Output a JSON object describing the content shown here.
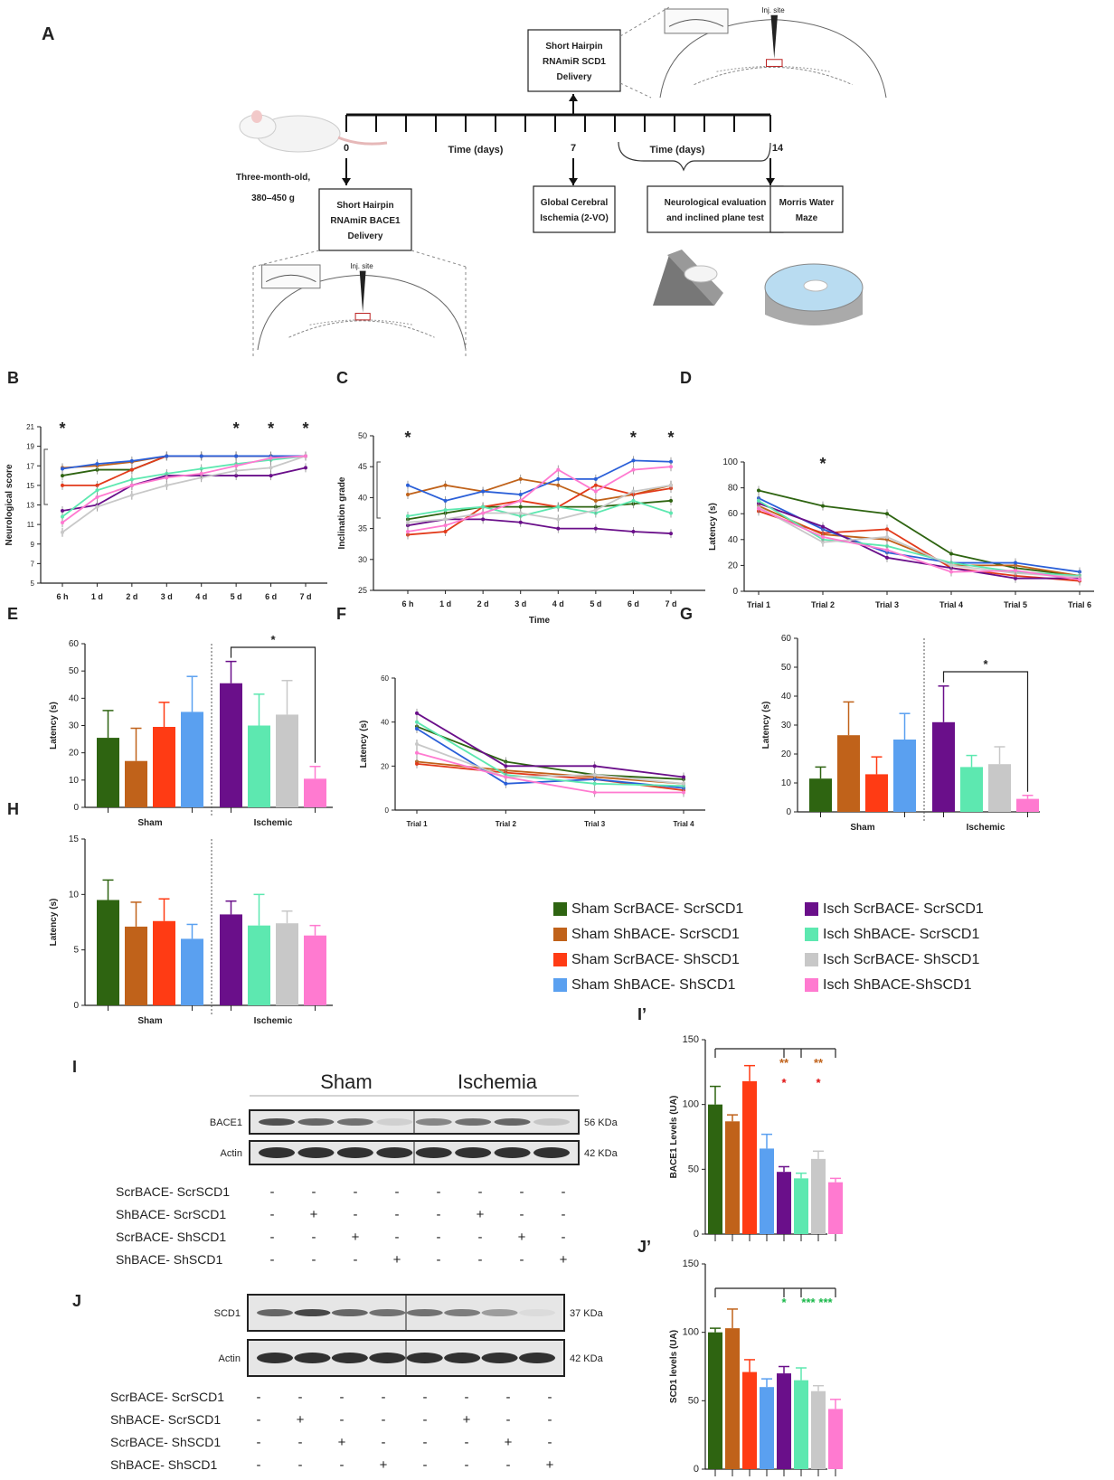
{
  "colors": {
    "g1": "#2e6411",
    "g2": "#c0621a",
    "g3": "#ff3b14",
    "g4": "#5aa0f0",
    "g5": "#6a0f8a",
    "g6": "#5de8b0",
    "g7": "#c8c8c8",
    "g8": "#ff7ad0",
    "line_blue": "#2a5fd8",
    "line_red": "#e23a1a",
    "sig_orange": "#c0621a",
    "sig_red": "#e01010",
    "sig_green": "#1ab84a"
  },
  "panel_A": {
    "label": "A",
    "rat_text": [
      "Three-month-old,",
      "380–450 g"
    ],
    "day0": "0",
    "day7": "7",
    "day14": "14",
    "time1": "Time (days)",
    "time2": "Time (days)",
    "box_scd1": [
      "Short Hairpin",
      "RNAmiR SCD1",
      "Delivery"
    ],
    "box_bace1": [
      "Short Hairpin",
      "RNAmiR BACE1",
      "Delivery"
    ],
    "box_ischemia": [
      "Global Cerebral",
      "Ischemia (2-VO)"
    ],
    "box_neuro": [
      "Neurological evaluation",
      "and inclined plane test"
    ],
    "box_morris": [
      "Morris Water",
      "Maze"
    ],
    "inj_site": "Inj. site"
  },
  "legend": {
    "items": [
      "Sham ScrBACE- ScrSCD1",
      "Sham ShBACE- ScrSCD1",
      "Sham ScrBACE- ShSCD1",
      "Sham ShBACE- ShSCD1",
      "Isch ScrBACE- ScrSCD1",
      "Isch ShBACE- ScrSCD1",
      "Isch ScrBACE- ShSCD1",
      "Isch ShBACE-ShSCD1"
    ],
    "icon": "legend-swatch"
  },
  "chart_data": [
    {
      "id": "B",
      "type": "line",
      "ylabel": "Neurological score",
      "xlabel": "",
      "categories": [
        "6 h",
        "1 d",
        "2 d",
        "3 d",
        "4 d",
        "5 d",
        "6 d",
        "7 d"
      ],
      "yticks": [
        5,
        7,
        9,
        11,
        13,
        15,
        17,
        19,
        21
      ],
      "ylim": [
        5,
        21
      ],
      "stars_at": [
        "6 h",
        "5 d",
        "6 d",
        "7 d"
      ],
      "series": [
        {
          "name": "Sham ScrBACE- ScrSCD1",
          "values": [
            16.0,
            16.6,
            16.6,
            18.0,
            18.0,
            18.0,
            18.0,
            18.0
          ]
        },
        {
          "name": "Sham ShBACE- ScrSCD1",
          "values": [
            16.8,
            17.0,
            17.4,
            18.0,
            18.0,
            18.0,
            18.0,
            18.0
          ]
        },
        {
          "name": "Sham ScrBACE- ShSCD1",
          "values": [
            15.0,
            15.0,
            16.6,
            18.0,
            18.0,
            18.0,
            18.0,
            18.0
          ]
        },
        {
          "name": "Sham ShBACE- ShSCD1",
          "values": [
            16.7,
            17.2,
            17.5,
            18.0,
            18.0,
            18.0,
            18.0,
            18.0
          ]
        },
        {
          "name": "Isch ScrBACE- ScrSCD1",
          "values": [
            12.4,
            13.0,
            15.0,
            16.0,
            16.0,
            16.0,
            16.0,
            16.8
          ]
        },
        {
          "name": "Isch ShBACE- ScrSCD1",
          "values": [
            11.8,
            14.5,
            15.6,
            16.2,
            16.7,
            17.2,
            17.6,
            18.0
          ]
        },
        {
          "name": "Isch ScrBACE- ShSCD1",
          "values": [
            10.2,
            12.8,
            14.0,
            15.0,
            15.8,
            16.5,
            16.8,
            18.0
          ]
        },
        {
          "name": "Isch ShBACE-ShSCD1",
          "values": [
            11.2,
            13.8,
            15.0,
            15.8,
            16.2,
            17.0,
            17.8,
            18.0
          ]
        }
      ]
    },
    {
      "id": "C",
      "type": "line",
      "ylabel": "Inclination grade",
      "xlabel": "Time",
      "categories": [
        "6 h",
        "1 d",
        "2 d",
        "3 d",
        "4 d",
        "5 d",
        "6 d",
        "7 d"
      ],
      "yticks": [
        25,
        30,
        35,
        40,
        45,
        50
      ],
      "ylim": [
        25,
        50
      ],
      "stars_at": [
        "6 h",
        "6 d",
        "7 d"
      ],
      "series": [
        {
          "name": "Sham ScrBACE- ScrSCD1",
          "values": [
            36.5,
            37.5,
            38.5,
            38.5,
            38.5,
            38.5,
            39.0,
            39.5
          ]
        },
        {
          "name": "Sham ShBACE- ScrSCD1",
          "values": [
            40.5,
            42.0,
            41.0,
            43.0,
            42.0,
            39.5,
            40.5,
            42.0
          ]
        },
        {
          "name": "Sham ScrBACE- ShSCD1",
          "values": [
            34.0,
            34.5,
            38.5,
            39.5,
            38.5,
            42.0,
            40.5,
            41.5
          ]
        },
        {
          "name": "Sham ShBACE- ShSCD1",
          "values": [
            42.0,
            39.5,
            41.0,
            40.5,
            43.0,
            43.0,
            46.0,
            45.8
          ]
        },
        {
          "name": "Isch ScrBACE- ScrSCD1",
          "values": [
            35.5,
            36.5,
            36.5,
            36.0,
            35.0,
            35.0,
            34.5,
            34.2
          ]
        },
        {
          "name": "Isch ShBACE- ScrSCD1",
          "values": [
            37.0,
            38.0,
            38.5,
            37.0,
            38.5,
            37.5,
            39.5,
            37.5
          ]
        },
        {
          "name": "Isch ScrBACE- ShSCD1",
          "values": [
            36.0,
            36.5,
            37.5,
            37.5,
            36.5,
            38.0,
            41.0,
            42.0
          ]
        },
        {
          "name": "Isch ShBACE-ShSCD1",
          "values": [
            34.5,
            35.5,
            37.5,
            39.5,
            44.5,
            41.0,
            44.5,
            45.0
          ]
        }
      ]
    },
    {
      "id": "D",
      "type": "line",
      "ylabel": "Latency (s)",
      "xlabel": "",
      "categories": [
        "Trial 1",
        "Trial 2",
        "Trial 3",
        "Trial 4",
        "Trial 5",
        "Trial 6"
      ],
      "yticks": [
        0,
        20,
        40,
        60,
        80,
        100
      ],
      "ylim": [
        0,
        100
      ],
      "stars_at": [
        "Trial 2"
      ],
      "series": [
        {
          "name": "Sham ScrBACE- ScrSCD1",
          "values": [
            78,
            66,
            60,
            29,
            18,
            12
          ]
        },
        {
          "name": "Sham ShBACE- ScrSCD1",
          "values": [
            66,
            44,
            40,
            20,
            20,
            12
          ]
        },
        {
          "name": "Sham ScrBACE- ShSCD1",
          "values": [
            62,
            45,
            48,
            18,
            12,
            8
          ]
        },
        {
          "name": "Sham ShBACE- ShSCD1",
          "values": [
            72,
            48,
            30,
            22,
            22,
            15
          ]
        },
        {
          "name": "Isch ScrBACE- ScrSCD1",
          "values": [
            68,
            50,
            26,
            18,
            10,
            10
          ]
        },
        {
          "name": "Isch ShBACE- ScrSCD1",
          "values": [
            70,
            40,
            35,
            22,
            15,
            12
          ]
        },
        {
          "name": "Isch ScrBACE- ShSCD1",
          "values": [
            65,
            38,
            42,
            20,
            14,
            11
          ]
        },
        {
          "name": "Isch ShBACE-ShSCD1",
          "values": [
            64,
            42,
            32,
            15,
            16,
            9
          ]
        }
      ]
    },
    {
      "id": "E",
      "type": "bar",
      "ylabel": "Latency (s)",
      "yticks": [
        0,
        10,
        20,
        30,
        40,
        50,
        60
      ],
      "ylim": [
        0,
        60
      ],
      "groups": [
        "Sham",
        "Ischemic"
      ],
      "star": "*",
      "values": [
        25.5,
        17,
        29.5,
        35,
        45.5,
        30,
        34,
        10.5
      ],
      "errors": [
        10,
        12,
        9,
        13,
        8,
        11.5,
        12.5,
        4.5
      ]
    },
    {
      "id": "F",
      "type": "line",
      "ylabel": "Latency (s)",
      "xlabel": "",
      "categories": [
        "Trial 1",
        "Trial 2",
        "Trial 3",
        "Trial 4"
      ],
      "yticks": [
        0,
        20,
        40,
        60
      ],
      "ylim": [
        0,
        60
      ],
      "series": [
        {
          "name": "Sham ScrBACE- ScrSCD1",
          "values": [
            38,
            22,
            16,
            14
          ]
        },
        {
          "name": "Sham ShBACE- ScrSCD1",
          "values": [
            22,
            18,
            15,
            12
          ]
        },
        {
          "name": "Sham ScrBACE- ShSCD1",
          "values": [
            21,
            17,
            14,
            9
          ]
        },
        {
          "name": "Sham ShBACE- ShSCD1",
          "values": [
            37,
            12,
            14,
            10
          ]
        },
        {
          "name": "Isch ScrBACE- ScrSCD1",
          "values": [
            44,
            20,
            20,
            15
          ]
        },
        {
          "name": "Isch ShBACE- ScrSCD1",
          "values": [
            40,
            16,
            12,
            11
          ]
        },
        {
          "name": "Isch ScrBACE- ShSCD1",
          "values": [
            30,
            15,
            16,
            12
          ]
        },
        {
          "name": "Isch ShBACE-ShSCD1",
          "values": [
            26,
            15,
            8,
            8
          ]
        }
      ]
    },
    {
      "id": "G",
      "type": "bar",
      "ylabel": "Latency (s)",
      "yticks": [
        0,
        10,
        20,
        30,
        40,
        50,
        60
      ],
      "ylim": [
        0,
        60
      ],
      "groups": [
        "Sham",
        "Ischemic"
      ],
      "star": "*",
      "values": [
        11.5,
        26.5,
        13,
        25,
        31,
        15.5,
        16.5,
        4.5
      ],
      "errors": [
        4,
        11.5,
        6,
        9,
        12.5,
        4,
        6,
        1.2
      ]
    },
    {
      "id": "H",
      "type": "bar",
      "ylabel": "Latency (s)",
      "yticks": [
        0,
        5,
        10,
        15
      ],
      "ylim": [
        0,
        15
      ],
      "groups": [
        "Sham",
        "Ischemic"
      ],
      "values": [
        9.5,
        7.1,
        7.6,
        6.0,
        8.2,
        7.2,
        7.4,
        6.3
      ],
      "errors": [
        1.8,
        2.2,
        2.0,
        1.3,
        1.2,
        2.8,
        1.1,
        0.9
      ]
    },
    {
      "id": "I'",
      "type": "bar",
      "ylabel": "BACE1 Levels (UA)",
      "yticks": [
        0,
        50,
        100,
        150
      ],
      "ylim": [
        0,
        150
      ],
      "values": [
        100,
        87,
        118,
        66,
        48,
        43,
        58,
        40
      ],
      "errors": [
        14,
        5,
        12,
        11,
        4,
        4,
        6,
        3
      ],
      "sig": [
        {
          "text": "**",
          "bar": 5,
          "row": 1,
          "color": "sig_orange"
        },
        {
          "text": "*",
          "bar": 5,
          "row": 2,
          "color": "sig_red"
        },
        {
          "text": "**",
          "bar": 7,
          "row": 1,
          "color": "sig_orange"
        },
        {
          "text": "*",
          "bar": 7,
          "row": 2,
          "color": "sig_red"
        }
      ]
    },
    {
      "id": "J'",
      "type": "bar",
      "ylabel": "SCD1 levels  (UA)",
      "yticks": [
        0,
        50,
        100,
        150
      ],
      "ylim": [
        0,
        150
      ],
      "values": [
        100,
        103,
        71,
        60,
        70,
        65,
        57,
        44
      ],
      "errors": [
        3,
        14,
        9,
        6,
        5,
        9,
        4,
        7
      ],
      "sig": [
        {
          "text": "*",
          "bar": 5,
          "row": 1,
          "color": "sig_green"
        },
        {
          "text": "***",
          "bar": 6,
          "row": 1,
          "color": "sig_green"
        },
        {
          "text": "***",
          "bar": 7,
          "row": 1,
          "color": "sig_green"
        }
      ]
    }
  ],
  "panel_labels": [
    "B",
    "C",
    "D",
    "E",
    "F",
    "G",
    "H"
  ],
  "blot_I": {
    "label": "I",
    "sham": "Sham",
    "ischemia": "Ischemia",
    "rows": [
      "BACE1",
      "Actin"
    ],
    "kda": [
      "56 KDa",
      "42 KDa"
    ],
    "conditions": [
      "ScrBACE- ScrSCD1",
      "ShBACE- ScrSCD1",
      "ScrBACE- ShSCD1",
      "ShBACE- ShSCD1"
    ],
    "signs": [
      [
        "-",
        "-",
        "-",
        "-",
        "-",
        "-",
        "-",
        "-"
      ],
      [
        "-",
        "+",
        "-",
        "-",
        "-",
        "+",
        "-",
        "-"
      ],
      [
        "-",
        "-",
        "+",
        "-",
        "-",
        "-",
        "+",
        "-"
      ],
      [
        "-",
        "-",
        "-",
        "+",
        "-",
        "-",
        "-",
        "+"
      ]
    ]
  },
  "blot_J": {
    "label": "J",
    "rows": [
      "SCD1",
      "Actin"
    ],
    "kda": [
      "37 KDa",
      "42 KDa"
    ],
    "conditions": [
      "ScrBACE- ScrSCD1",
      "ShBACE- ScrSCD1",
      "ScrBACE- ShSCD1",
      "ShBACE- ShSCD1"
    ],
    "signs": [
      [
        "-",
        "-",
        "-",
        "-",
        "-",
        "-",
        "-",
        "-"
      ],
      [
        "-",
        "+",
        "-",
        "-",
        "-",
        "+",
        "-",
        "-"
      ],
      [
        "-",
        "-",
        "+",
        "-",
        "-",
        "-",
        "+",
        "-"
      ],
      [
        "-",
        "-",
        "-",
        "+",
        "-",
        "-",
        "-",
        "+"
      ]
    ]
  }
}
